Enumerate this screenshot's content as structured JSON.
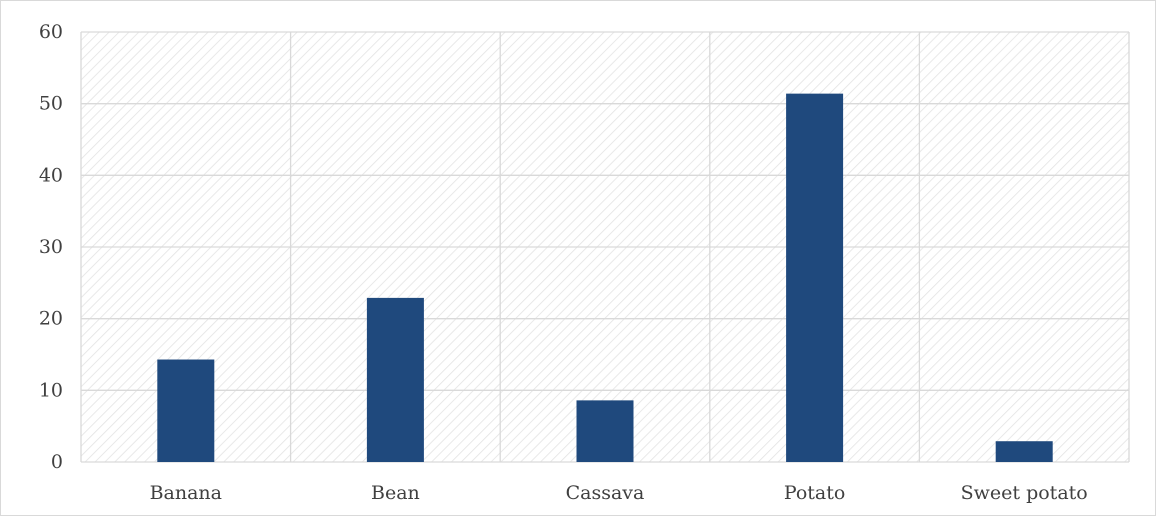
{
  "chart_data": {
    "type": "bar",
    "categories": [
      "Banana",
      "Bean",
      "Cassava",
      "Potato",
      "Sweet potato"
    ],
    "values": [
      14.3,
      22.9,
      8.6,
      51.4,
      2.9
    ],
    "title": "",
    "xlabel": "",
    "ylabel": "",
    "ylim": [
      0,
      60
    ],
    "yticks": [
      0,
      10,
      20,
      30,
      40,
      50,
      60
    ],
    "grid": true,
    "legend": "none",
    "colors": {
      "bar": "#1f497d",
      "grid": "#d9d9d9",
      "plot_hatch": "#e3e3e3",
      "axis_text": "#404040"
    }
  }
}
